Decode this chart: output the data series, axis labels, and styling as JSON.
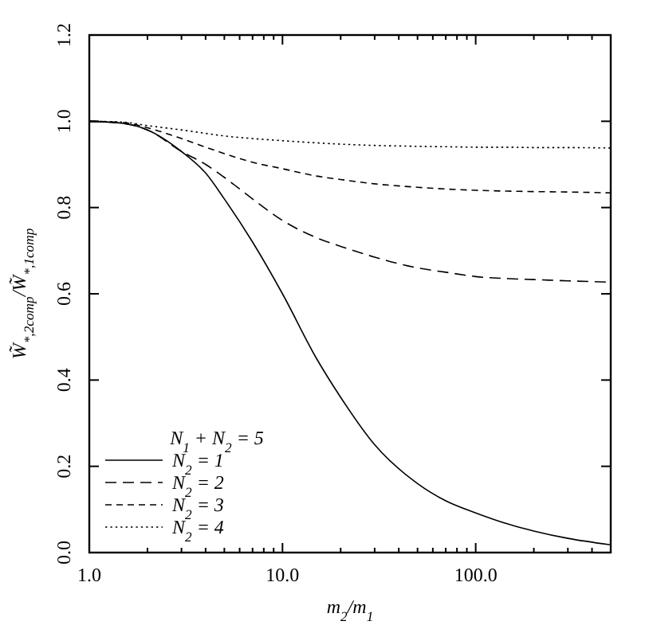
{
  "chart_data": {
    "type": "line",
    "xlabel": "m$_{2}$/m$_{1}$",
    "ylabel": "W̃$_{*,2comp}$/W̃$_{*,1comp}$",
    "legend_title": "N$_{1}$ + N$_{2}$ = 5",
    "log": "x",
    "xlim": [
      1,
      500
    ],
    "ylim": [
      0,
      1.2
    ],
    "xticks": [
      {
        "value": 1,
        "label": "1.0"
      },
      {
        "value": 2,
        "label": null
      },
      {
        "value": 3,
        "label": null
      },
      {
        "value": 4,
        "label": null
      },
      {
        "value": 5,
        "label": null
      },
      {
        "value": 6,
        "label": null
      },
      {
        "value": 7,
        "label": null
      },
      {
        "value": 8,
        "label": null
      },
      {
        "value": 9,
        "label": null
      },
      {
        "value": 10,
        "label": "10.0"
      },
      {
        "value": 20,
        "label": null
      },
      {
        "value": 30,
        "label": null
      },
      {
        "value": 40,
        "label": null
      },
      {
        "value": 50,
        "label": null
      },
      {
        "value": 60,
        "label": null
      },
      {
        "value": 70,
        "label": null
      },
      {
        "value": 80,
        "label": null
      },
      {
        "value": 90,
        "label": null
      },
      {
        "value": 100,
        "label": "100.0"
      },
      {
        "value": 200,
        "label": null
      },
      {
        "value": 300,
        "label": null
      },
      {
        "value": 400,
        "label": null
      }
    ],
    "yticks": [
      {
        "value": 0,
        "label": "0.0"
      },
      0.2,
      0.4,
      0.6,
      0.8,
      {
        "value": 1,
        "label": "1.0"
      },
      1.2
    ],
    "grid": false,
    "legend": "bottom left",
    "marker": "none",
    "x": [
      1,
      1.5,
      2,
      3,
      4,
      5,
      7,
      10,
      15,
      20,
      30,
      50,
      70,
      100,
      150,
      200,
      300,
      500
    ],
    "series": [
      {
        "name": "N$_{2}$ = 1",
        "color": "#000000",
        "line_style": "solid",
        "values": [
          1,
          0.995,
          0.98,
          0.93,
          0.88,
          0.82,
          0.72,
          0.6,
          0.45,
          0.36,
          0.25,
          0.16,
          0.12,
          0.092,
          0.065,
          0.05,
          0.033,
          0.018
        ]
      },
      {
        "name": "N$_{2}$ = 2",
        "color": "#000000",
        "line_style": "dashed",
        "values": [
          1,
          0.995,
          0.98,
          0.93,
          0.9,
          0.87,
          0.82,
          0.77,
          0.73,
          0.71,
          0.685,
          0.66,
          0.65,
          0.64,
          0.635,
          0.633,
          0.63,
          0.627
        ]
      },
      {
        "name": "N$_{2}$ = 3",
        "color": "#000000",
        "line_style": "dashed",
        "values": [
          1,
          0.997,
          0.985,
          0.96,
          0.94,
          0.925,
          0.905,
          0.89,
          0.873,
          0.865,
          0.855,
          0.847,
          0.843,
          0.84,
          0.838,
          0.837,
          0.836,
          0.834
        ]
      },
      {
        "name": "N$_{2}$ = 4",
        "color": "#000000",
        "line_style": "dotted",
        "values": [
          1,
          0.998,
          0.99,
          0.98,
          0.972,
          0.966,
          0.96,
          0.955,
          0.95,
          0.947,
          0.944,
          0.942,
          0.941,
          0.94,
          0.94,
          0.939,
          0.939,
          0.938
        ]
      }
    ]
  }
}
